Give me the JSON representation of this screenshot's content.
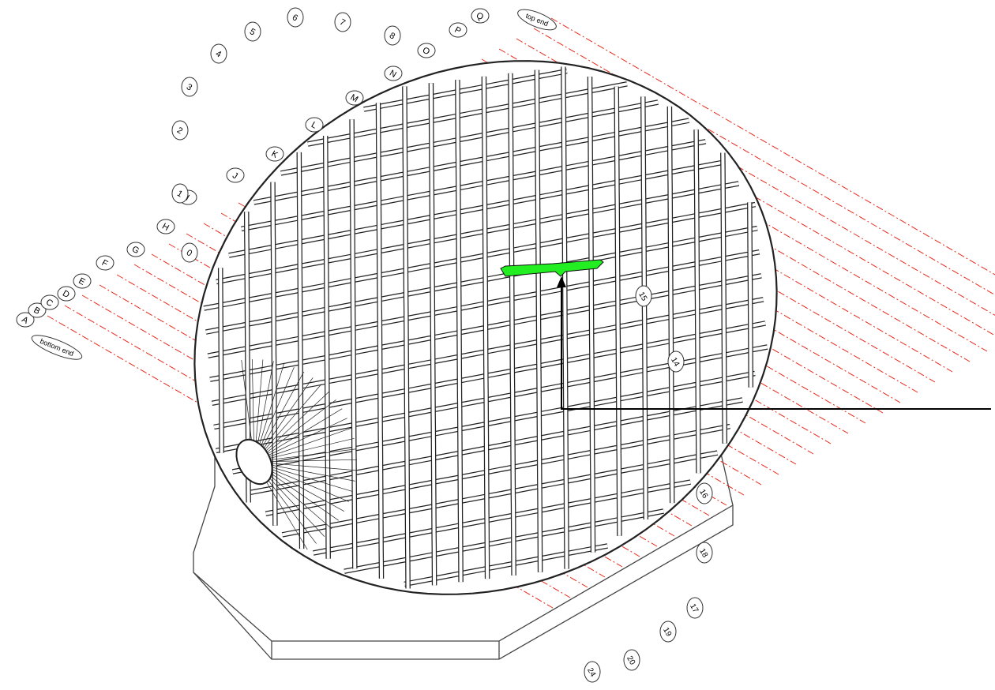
{
  "diagram": {
    "colors": {
      "ink": "#222222",
      "grid_line": "#e8291c",
      "highlight": "#22ee22",
      "background": "#ffffff"
    },
    "labels_left": [
      "A",
      "B",
      "C",
      "D",
      "E",
      "F",
      "G",
      "H",
      "I",
      "J",
      "K",
      "L",
      "M",
      "N",
      "O",
      "P",
      "Q"
    ],
    "label_bottom_end": "bottom end",
    "label_top_end": "top end",
    "radial_labels_top": [
      "8",
      "7",
      "6",
      "5",
      "4",
      "3",
      "2",
      "1",
      "0"
    ],
    "numeric_labels_right": [
      "14",
      "15",
      "16",
      "18",
      "17",
      "19",
      "20",
      "24"
    ]
  }
}
